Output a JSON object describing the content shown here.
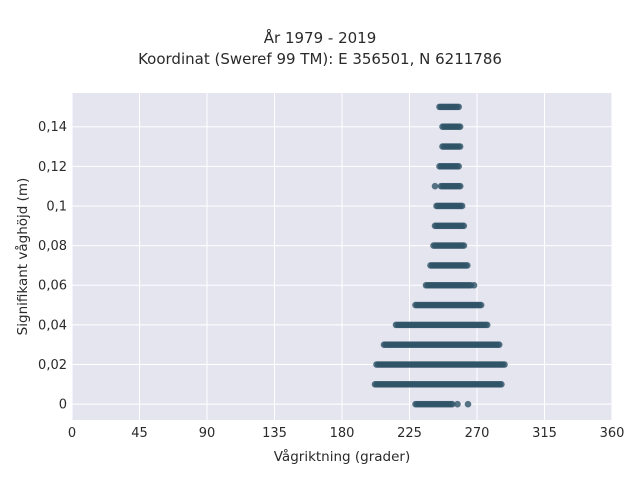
{
  "chart_data": {
    "type": "scatter",
    "title_lines": [
      "År 1979 - 2019",
      "Koordinat (Sweref 99 TM): E 356501, N 6211786"
    ],
    "xlabel": "Vågriktning (grader)",
    "ylabel": "Signifikant våghöjd (m)",
    "xlim": [
      0,
      360
    ],
    "ylim": [
      -0.008,
      0.157
    ],
    "x_ticks": [
      0,
      45,
      90,
      135,
      180,
      225,
      270,
      315,
      360
    ],
    "x_tick_labels": [
      "0",
      "45",
      "90",
      "135",
      "180",
      "225",
      "270",
      "315",
      "360"
    ],
    "y_ticks": [
      0,
      0.02,
      0.04,
      0.06,
      0.08,
      0.1,
      0.12,
      0.14
    ],
    "y_tick_labels": [
      "0",
      "0,02",
      "0,04",
      "0,06",
      "0,08",
      "0,1",
      "0,12",
      "0,14"
    ],
    "grid": true,
    "marker_color": "#2f5468",
    "plot_background": "#e5e5f0",
    "rows": [
      {
        "y": 0.0,
        "x_min": 229,
        "x_max": 254,
        "outliers": [
          257,
          264
        ]
      },
      {
        "y": 0.01,
        "x_min": 202,
        "x_max": 287,
        "outliers": []
      },
      {
        "y": 0.02,
        "x_min": 203,
        "x_max": 289,
        "outliers": []
      },
      {
        "y": 0.03,
        "x_min": 208,
        "x_max": 285,
        "outliers": []
      },
      {
        "y": 0.04,
        "x_min": 216,
        "x_max": 277,
        "outliers": []
      },
      {
        "y": 0.05,
        "x_min": 229,
        "x_max": 273,
        "outliers": []
      },
      {
        "y": 0.06,
        "x_min": 236,
        "x_max": 266,
        "outliers": [
          268
        ]
      },
      {
        "y": 0.07,
        "x_min": 239,
        "x_max": 264,
        "outliers": []
      },
      {
        "y": 0.08,
        "x_min": 241,
        "x_max": 262,
        "outliers": []
      },
      {
        "y": 0.09,
        "x_min": 242,
        "x_max": 262,
        "outliers": []
      },
      {
        "y": 0.1,
        "x_min": 243,
        "x_max": 261,
        "outliers": []
      },
      {
        "y": 0.11,
        "x_min": 246,
        "x_max": 259,
        "outliers": [
          242
        ]
      },
      {
        "y": 0.12,
        "x_min": 245,
        "x_max": 258,
        "outliers": []
      },
      {
        "y": 0.13,
        "x_min": 247,
        "x_max": 259,
        "outliers": []
      },
      {
        "y": 0.14,
        "x_min": 247,
        "x_max": 259,
        "outliers": []
      },
      {
        "y": 0.15,
        "x_min": 245,
        "x_max": 258,
        "outliers": []
      }
    ]
  }
}
